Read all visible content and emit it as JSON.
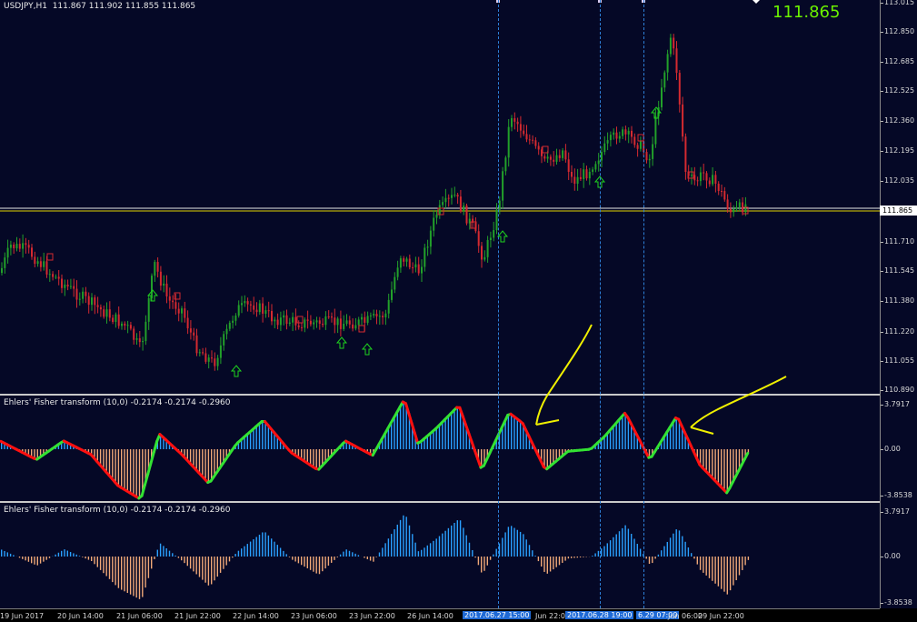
{
  "chart": {
    "main_title": "USDJPY,H1  111.867 111.902 111.855 111.865",
    "last_price": "111.865",
    "price_tag": "111.865",
    "price_ticks": [
      "113.015",
      "112.850",
      "112.685",
      "112.525",
      "112.360",
      "112.195",
      "112.035",
      "111.710",
      "111.545",
      "111.380",
      "111.220",
      "111.055",
      "110.890"
    ],
    "colors": {
      "bull": "#22a02a",
      "bear": "#d42a30",
      "up": "#2aa0ff",
      "down": "#f0a878",
      "fisher_up": "#33e233",
      "fisher_down": "#ff1010",
      "arrow": "#1ed11e",
      "annotation": "#f0f000",
      "background": "#050826",
      "grid": "#2d7fd8"
    }
  },
  "indicator1": {
    "title": "Ehlers' Fisher transform (10,0) -0.2174 -0.2174 -0.2960",
    "ticks": [
      "3.7917",
      "0.00",
      "-3.8538"
    ]
  },
  "indicator2": {
    "title": "Ehlers' Fisher transform (10,0) -0.2174 -0.2174 -0.2960",
    "ticks": [
      "3.7917",
      "0.00",
      "-3.8538"
    ]
  },
  "time_axis": {
    "labels": [
      "19 Jun 2017",
      "20 Jun 14:00",
      "21 Jun 06:00",
      "21 Jun 22:00",
      "22 Jun 14:00",
      "23 Jun 06:00",
      "23 Jun 22:00",
      "26 Jun 14:00",
      "2017.06.27 15:00",
      "Jun 22:00",
      "2017.06.28 19:00",
      "6.29 07:00",
      "Jun 06:00",
      "29 Jun 22:00"
    ]
  },
  "icons": [
    "up-arrow-icon",
    "down-arrow-icon",
    "buy-signal-icon"
  ]
}
